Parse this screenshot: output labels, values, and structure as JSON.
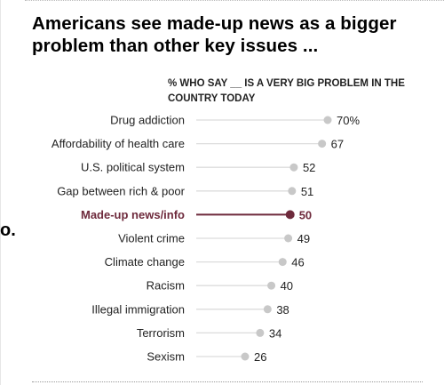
{
  "chart_data": {
    "type": "bar",
    "title": "Americans see made-up news as a bigger problem than other key issues ...",
    "subtitle": "% WHO SAY __ IS A VERY BIG PROBLEM IN THE COUNTRY TODAY",
    "categories": [
      "Drug addiction",
      "Affordability of health care",
      "U.S. political system",
      "Gap between rich & poor",
      "Made-up news/info",
      "Violent crime",
      "Climate change",
      "Racism",
      "Illegal immigration",
      "Terrorism",
      "Sexism"
    ],
    "values": [
      70,
      67,
      52,
      51,
      50,
      49,
      46,
      40,
      38,
      34,
      26
    ],
    "value_labels": [
      "70%",
      "67",
      "52",
      "51",
      "50",
      "49",
      "46",
      "40",
      "38",
      "34",
      "26"
    ],
    "highlight": "Made-up news/info",
    "xlim": [
      0,
      70
    ],
    "grid": false,
    "legend": "none",
    "colors": {
      "default_dot": "#c8c8c8",
      "default_line": "#dcdcdc",
      "highlight": "#6e2a3c",
      "text": "#222222"
    }
  },
  "stray_glyph": "o."
}
